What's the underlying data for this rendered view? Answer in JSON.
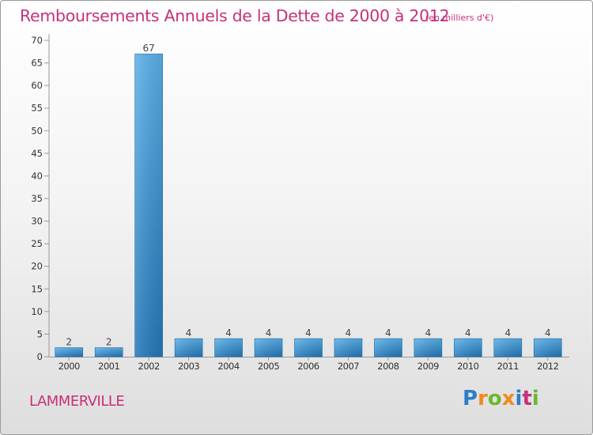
{
  "title": "Remboursements Annuels de la Dette de 2000 à 2012",
  "unit": "(en milliers d'€)",
  "city": "LAMMERVILLE",
  "logo": {
    "letters": [
      "P",
      "r",
      "o",
      "x",
      "i",
      "t",
      "i"
    ],
    "colors": [
      "#2b7ec8",
      "#f08a1e",
      "#6bb82d",
      "#f08a1e",
      "#2b7ec8",
      "#c8307a",
      "#6bb82d"
    ]
  },
  "colors": {
    "title": "#c8307a",
    "bar_light": "#5aafe8",
    "bar_dark": "#2277b8"
  },
  "chart_data": {
    "type": "bar",
    "title": "Remboursements Annuels de la Dette de 2000 à 2012",
    "xlabel": "",
    "ylabel": "",
    "categories": [
      "2000",
      "2001",
      "2002",
      "2003",
      "2004",
      "2005",
      "2006",
      "2007",
      "2008",
      "2009",
      "2010",
      "2011",
      "2012"
    ],
    "values": [
      2,
      2,
      67,
      4,
      4,
      4,
      4,
      4,
      4,
      4,
      4,
      4,
      4
    ],
    "ylim": [
      0,
      70
    ],
    "yticks": [
      0,
      5,
      10,
      15,
      20,
      25,
      30,
      35,
      40,
      45,
      50,
      55,
      60,
      65,
      70
    ],
    "grid": false
  }
}
